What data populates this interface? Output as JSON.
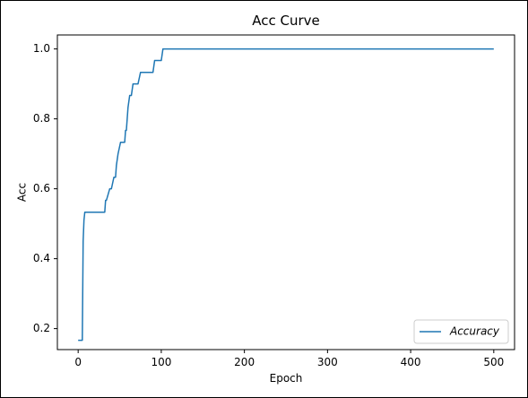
{
  "chart_data": {
    "type": "line",
    "title": "Acc Curve",
    "xlabel": "Epoch",
    "ylabel": "Acc",
    "xlim": [
      -25,
      525
    ],
    "ylim": [
      0.14,
      1.04
    ],
    "xticks": [
      0,
      100,
      200,
      300,
      400,
      500
    ],
    "yticks": [
      0.2,
      0.4,
      0.6,
      0.8,
      1.0
    ],
    "xtick_labels": [
      "0",
      "100",
      "200",
      "300",
      "400",
      "500"
    ],
    "ytick_labels": [
      "0.2",
      "0.4",
      "0.6",
      "0.8",
      "1.0"
    ],
    "grid": false,
    "legend_position": "lower-right",
    "series": [
      {
        "name": "Accuracy",
        "color": "#1f77b4",
        "x": [
          0,
          5,
          6,
          7,
          8,
          10,
          20,
          32,
          33,
          34,
          38,
          40,
          43,
          45,
          46,
          48,
          51,
          54,
          56,
          57,
          58,
          60,
          62,
          64,
          66,
          70,
          72,
          75,
          85,
          90,
          92,
          100,
          102,
          200,
          300,
          400,
          500
        ],
        "y": [
          0.1667,
          0.1667,
          0.45,
          0.51,
          0.533,
          0.533,
          0.533,
          0.533,
          0.567,
          0.567,
          0.6,
          0.6,
          0.633,
          0.633,
          0.667,
          0.7,
          0.733,
          0.733,
          0.733,
          0.767,
          0.767,
          0.833,
          0.867,
          0.867,
          0.9,
          0.9,
          0.9,
          0.933,
          0.933,
          0.933,
          0.967,
          0.967,
          1.0,
          1.0,
          1.0,
          1.0,
          1.0
        ]
      }
    ]
  }
}
